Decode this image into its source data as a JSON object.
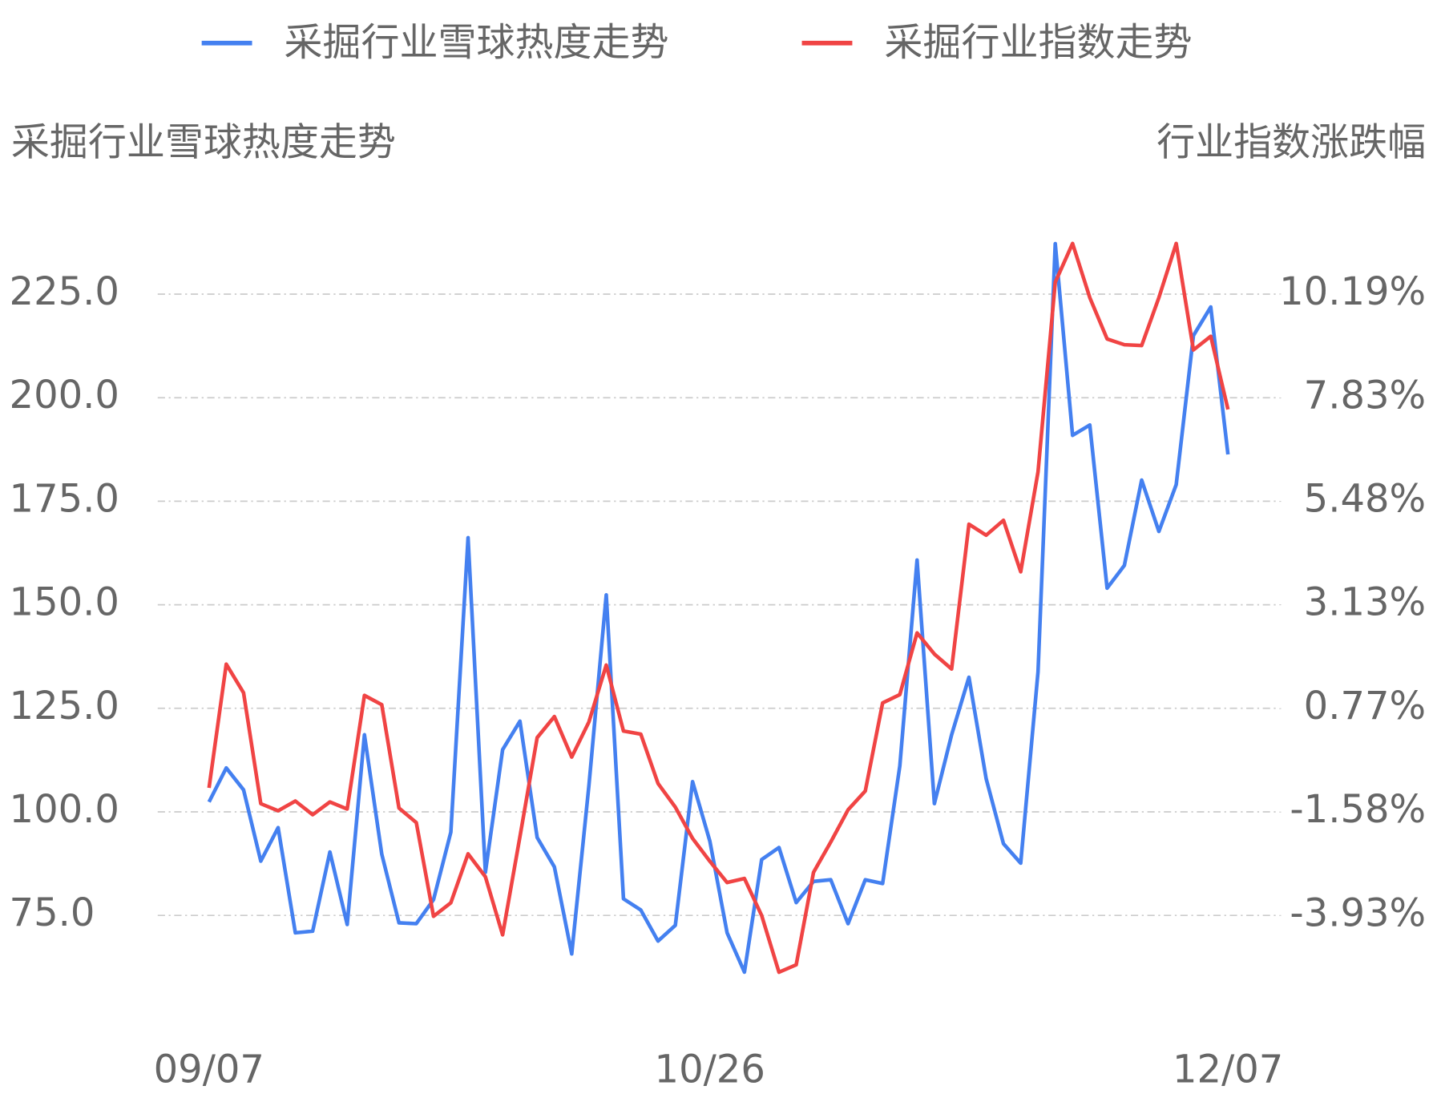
{
  "chart_data": {
    "type": "line",
    "legend_position": "top",
    "y_axis_title": "采掘行业雪球热度走势",
    "y2_axis_title": "行业指数涨跌幅",
    "categories": [
      "09/07",
      null,
      null,
      null,
      null,
      null,
      null,
      null,
      null,
      null,
      null,
      null,
      null,
      null,
      null,
      null,
      null,
      null,
      null,
      null,
      null,
      null,
      null,
      null,
      null,
      null,
      null,
      null,
      null,
      "10/26",
      null,
      null,
      null,
      null,
      null,
      null,
      null,
      null,
      null,
      null,
      null,
      null,
      null,
      null,
      null,
      null,
      null,
      null,
      null,
      null,
      null,
      null,
      null,
      null,
      null,
      null,
      null,
      null,
      null,
      "12/07"
    ],
    "ylim": [
      60,
      240
    ],
    "yticks": [
      {
        "value": 75,
        "label": "75.0"
      },
      {
        "value": 100,
        "label": "100.0"
      },
      {
        "value": 125,
        "label": "125.0"
      },
      {
        "value": 150,
        "label": "150.0"
      },
      {
        "value": 175,
        "label": "175.0"
      },
      {
        "value": 200,
        "label": "200.0"
      },
      {
        "value": 225,
        "label": "225.0"
      }
    ],
    "y2lim": [
      -5.34,
      11.6
    ],
    "y2ticks": [
      {
        "value": -3.93,
        "label": "-3.93%"
      },
      {
        "value": -1.58,
        "label": "-1.58%"
      },
      {
        "value": 0.77,
        "label": "0.77%"
      },
      {
        "value": 3.13,
        "label": "3.13%"
      },
      {
        "value": 5.48,
        "label": "5.48%"
      },
      {
        "value": 7.83,
        "label": "7.83%"
      },
      {
        "value": 10.19,
        "label": "10.19%"
      }
    ],
    "grid": true,
    "series": [
      {
        "name": "采掘行业雪球热度走势",
        "color": "#4480f0",
        "axis": "y",
        "values": [
          102.4,
          110.6,
          105.3,
          88.1,
          96.2,
          70.8,
          71.2,
          90.3,
          72.8,
          118.6,
          89.8,
          73.2,
          73.0,
          78.8,
          95.1,
          166.2,
          85.4,
          115.0,
          121.9,
          93.8,
          86.7,
          65.7,
          106.4,
          152.4,
          79.0,
          76.3,
          68.8,
          72.6,
          107.3,
          92.9,
          70.8,
          61.3,
          88.5,
          91.4,
          78.1,
          83.2,
          83.6,
          73.0,
          83.6,
          82.7,
          111.1,
          160.8,
          102.0,
          118.6,
          132.5,
          108.0,
          92.3,
          87.6,
          133.8,
          237.2,
          190.9,
          193.4,
          154.0,
          159.5,
          180.1,
          167.7,
          179.0,
          215.0,
          221.9,
          186.3
        ]
      },
      {
        "name": "采掘行业指数走势",
        "color": "#f04444",
        "axis": "y2",
        "values": [
          -1.03,
          1.78,
          1.13,
          -1.39,
          -1.55,
          -1.33,
          -1.64,
          -1.35,
          -1.51,
          1.07,
          0.86,
          -1.49,
          -1.82,
          -3.95,
          -3.64,
          -2.53,
          -3.05,
          -4.37,
          -2.14,
          0.11,
          0.59,
          -0.33,
          0.47,
          1.76,
          0.26,
          0.19,
          -0.93,
          -1.47,
          -2.18,
          -2.7,
          -3.18,
          -3.09,
          -3.93,
          -5.22,
          -5.05,
          -2.95,
          -2.26,
          -1.53,
          -1.1,
          0.9,
          1.09,
          2.49,
          2.01,
          1.67,
          4.96,
          4.71,
          5.05,
          3.88,
          6.15,
          10.46,
          11.34,
          10.11,
          9.17,
          9.04,
          9.02,
          10.11,
          11.34,
          8.92,
          9.23,
          7.57
        ]
      }
    ]
  }
}
